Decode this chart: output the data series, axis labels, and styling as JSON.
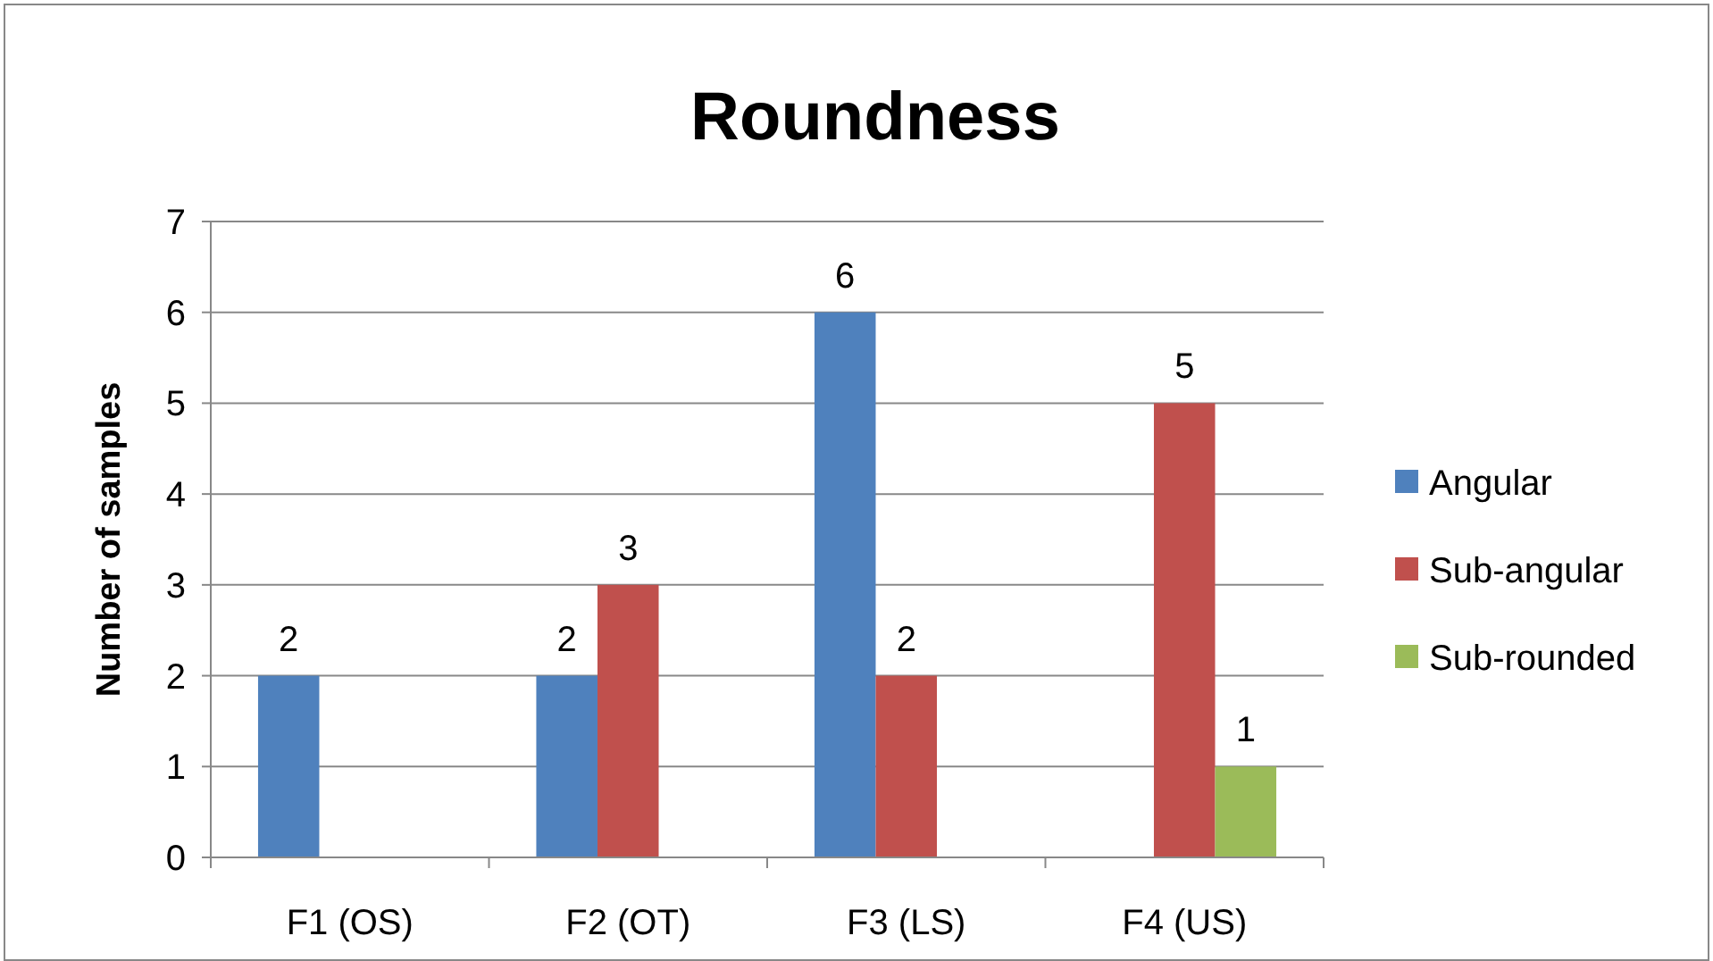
{
  "chart_data": {
    "type": "bar",
    "title": "Roundness",
    "ylabel": "Number of samples",
    "categories": [
      "F1 (OS)",
      "F2 (OT)",
      "F3 (LS)",
      "F4 (US)"
    ],
    "series": [
      {
        "name": "Angular",
        "color": "#4f81bd",
        "values": [
          2,
          2,
          6,
          0
        ],
        "value_labels": [
          "2",
          "2",
          "6",
          null
        ]
      },
      {
        "name": "Sub-angular",
        "color": "#c0504d",
        "values": [
          0,
          3,
          2,
          5
        ],
        "value_labels": [
          null,
          "3",
          "2",
          "5"
        ]
      },
      {
        "name": "Sub-rounded",
        "color": "#9bbb59",
        "values": [
          0,
          0,
          0,
          1
        ],
        "value_labels": [
          null,
          null,
          null,
          "1"
        ]
      }
    ],
    "ylim": [
      0,
      7
    ],
    "yticks": [
      0,
      1,
      2,
      3,
      4,
      5,
      6,
      7
    ],
    "grid": "y",
    "legend": "right"
  }
}
